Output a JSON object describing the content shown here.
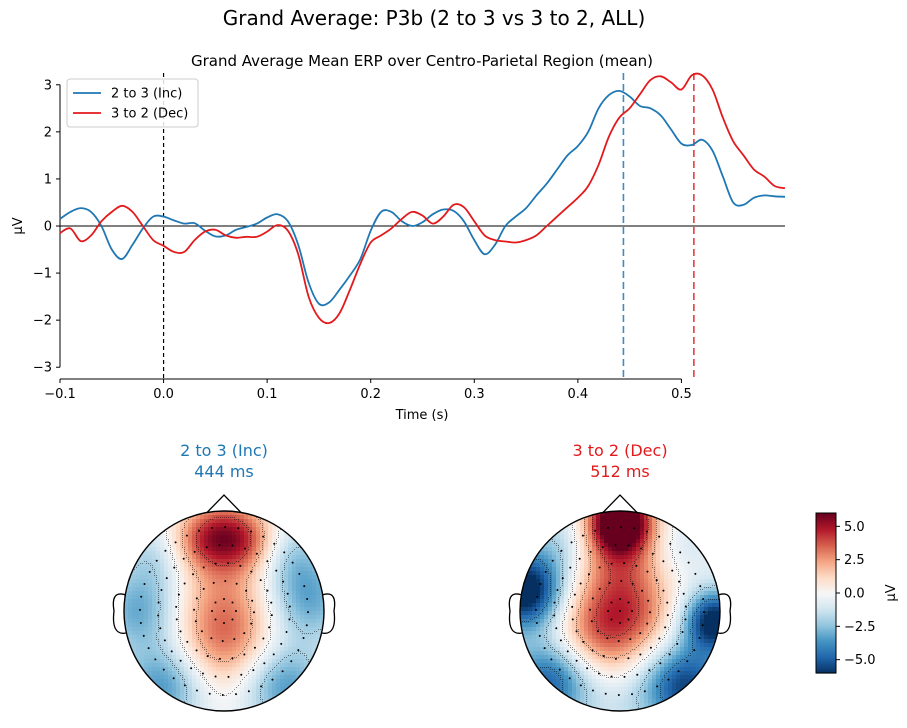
{
  "suptitle": "Grand Average: P3b (2 to 3 vs 3 to 2, ALL)",
  "chart_data": [
    {
      "type": "line",
      "title": "Grand Average Mean ERP over Centro-Parietal Region (mean)",
      "xlabel": "Time (s)",
      "ylabel": "µV",
      "xlim": [
        -0.1,
        0.6
      ],
      "ylim": [
        -3.25,
        3.25
      ],
      "xticks": [
        -0.1,
        0.0,
        0.1,
        0.2,
        0.3,
        0.4,
        0.5
      ],
      "xtick_labels": [
        "−0.1",
        "0.0",
        "0.1",
        "0.2",
        "0.3",
        "0.4",
        "0.5"
      ],
      "yticks": [
        -3,
        -2,
        -1,
        0,
        1,
        2,
        3
      ],
      "ytick_labels": [
        "−3",
        "−2",
        "−1",
        "0",
        "1",
        "2",
        "3"
      ],
      "grid": false,
      "legend_position": "upper-left",
      "zero_line": true,
      "stimulus_onset_marker": 0.0,
      "series": [
        {
          "name": "2 to 3 (Inc)",
          "color": "#1f77b4",
          "peak_marker": 0.444,
          "points": [
            [
              -0.1,
              0.15
            ],
            [
              -0.09,
              0.3
            ],
            [
              -0.08,
              0.38
            ],
            [
              -0.07,
              0.3
            ],
            [
              -0.06,
              0.0
            ],
            [
              -0.05,
              -0.5
            ],
            [
              -0.04,
              -0.7
            ],
            [
              -0.03,
              -0.4
            ],
            [
              -0.02,
              -0.05
            ],
            [
              -0.01,
              0.2
            ],
            [
              0.0,
              0.2
            ],
            [
              0.01,
              0.12
            ],
            [
              0.02,
              0.05
            ],
            [
              0.03,
              0.06
            ],
            [
              0.04,
              -0.1
            ],
            [
              0.05,
              -0.22
            ],
            [
              0.06,
              -0.2
            ],
            [
              0.07,
              -0.08
            ],
            [
              0.08,
              -0.02
            ],
            [
              0.09,
              0.05
            ],
            [
              0.1,
              0.18
            ],
            [
              0.11,
              0.25
            ],
            [
              0.12,
              0.1
            ],
            [
              0.13,
              -0.4
            ],
            [
              0.14,
              -1.2
            ],
            [
              0.15,
              -1.65
            ],
            [
              0.16,
              -1.62
            ],
            [
              0.17,
              -1.35
            ],
            [
              0.18,
              -1.05
            ],
            [
              0.19,
              -0.7
            ],
            [
              0.2,
              -0.1
            ],
            [
              0.21,
              0.3
            ],
            [
              0.22,
              0.3
            ],
            [
              0.23,
              0.1
            ],
            [
              0.24,
              0.0
            ],
            [
              0.25,
              0.08
            ],
            [
              0.26,
              0.25
            ],
            [
              0.27,
              0.35
            ],
            [
              0.28,
              0.32
            ],
            [
              0.29,
              0.1
            ],
            [
              0.3,
              -0.3
            ],
            [
              0.31,
              -0.6
            ],
            [
              0.32,
              -0.4
            ],
            [
              0.33,
              0.0
            ],
            [
              0.34,
              0.2
            ],
            [
              0.35,
              0.38
            ],
            [
              0.36,
              0.65
            ],
            [
              0.37,
              0.9
            ],
            [
              0.38,
              1.2
            ],
            [
              0.39,
              1.5
            ],
            [
              0.4,
              1.7
            ],
            [
              0.41,
              2.0
            ],
            [
              0.42,
              2.5
            ],
            [
              0.43,
              2.78
            ],
            [
              0.44,
              2.87
            ],
            [
              0.45,
              2.75
            ],
            [
              0.46,
              2.55
            ],
            [
              0.47,
              2.5
            ],
            [
              0.48,
              2.35
            ],
            [
              0.49,
              2.05
            ],
            [
              0.5,
              1.75
            ],
            [
              0.51,
              1.72
            ],
            [
              0.52,
              1.83
            ],
            [
              0.53,
              1.6
            ],
            [
              0.54,
              1.05
            ],
            [
              0.55,
              0.5
            ],
            [
              0.56,
              0.45
            ],
            [
              0.57,
              0.6
            ],
            [
              0.58,
              0.65
            ],
            [
              0.59,
              0.63
            ],
            [
              0.6,
              0.62
            ]
          ]
        },
        {
          "name": "3 to 2 (Dec)",
          "color": "#e31a1c",
          "peak_marker": 0.512,
          "points": [
            [
              -0.1,
              -0.15
            ],
            [
              -0.09,
              -0.05
            ],
            [
              -0.08,
              -0.32
            ],
            [
              -0.07,
              -0.2
            ],
            [
              -0.06,
              0.1
            ],
            [
              -0.05,
              0.3
            ],
            [
              -0.04,
              0.43
            ],
            [
              -0.03,
              0.3
            ],
            [
              -0.02,
              0.0
            ],
            [
              -0.01,
              -0.3
            ],
            [
              0.0,
              -0.42
            ],
            [
              0.01,
              -0.55
            ],
            [
              0.02,
              -0.55
            ],
            [
              0.03,
              -0.3
            ],
            [
              0.04,
              -0.12
            ],
            [
              0.05,
              -0.08
            ],
            [
              0.06,
              -0.2
            ],
            [
              0.07,
              -0.25
            ],
            [
              0.08,
              -0.23
            ],
            [
              0.09,
              -0.23
            ],
            [
              0.1,
              -0.12
            ],
            [
              0.11,
              0.02
            ],
            [
              0.12,
              -0.1
            ],
            [
              0.13,
              -0.6
            ],
            [
              0.14,
              -1.5
            ],
            [
              0.15,
              -1.95
            ],
            [
              0.16,
              -2.06
            ],
            [
              0.17,
              -1.85
            ],
            [
              0.18,
              -1.35
            ],
            [
              0.19,
              -0.8
            ],
            [
              0.2,
              -0.35
            ],
            [
              0.21,
              -0.2
            ],
            [
              0.22,
              -0.05
            ],
            [
              0.23,
              0.15
            ],
            [
              0.24,
              0.3
            ],
            [
              0.25,
              0.22
            ],
            [
              0.26,
              0.05
            ],
            [
              0.27,
              0.2
            ],
            [
              0.28,
              0.45
            ],
            [
              0.29,
              0.4
            ],
            [
              0.3,
              0.1
            ],
            [
              0.31,
              -0.2
            ],
            [
              0.32,
              -0.3
            ],
            [
              0.33,
              -0.33
            ],
            [
              0.34,
              -0.35
            ],
            [
              0.35,
              -0.3
            ],
            [
              0.36,
              -0.2
            ],
            [
              0.37,
              0.0
            ],
            [
              0.38,
              0.2
            ],
            [
              0.39,
              0.4
            ],
            [
              0.4,
              0.6
            ],
            [
              0.41,
              0.85
            ],
            [
              0.42,
              1.3
            ],
            [
              0.43,
              1.9
            ],
            [
              0.44,
              2.3
            ],
            [
              0.45,
              2.5
            ],
            [
              0.46,
              2.8
            ],
            [
              0.47,
              3.1
            ],
            [
              0.48,
              3.18
            ],
            [
              0.49,
              3.05
            ],
            [
              0.5,
              2.9
            ],
            [
              0.51,
              3.2
            ],
            [
              0.52,
              3.2
            ],
            [
              0.53,
              2.9
            ],
            [
              0.54,
              2.3
            ],
            [
              0.55,
              1.8
            ],
            [
              0.56,
              1.5
            ],
            [
              0.57,
              1.2
            ],
            [
              0.58,
              1.05
            ],
            [
              0.59,
              0.85
            ],
            [
              0.6,
              0.8
            ]
          ]
        }
      ]
    },
    {
      "type": "heatmap",
      "subtype": "topomap",
      "condition": "2 to 3 (Inc)",
      "title_line1": "2 to 3 (Inc)",
      "title_line2": "444 ms",
      "title_color": "#1f77b4",
      "time_ms": 444,
      "sources": [
        {
          "loc": [
            0.0,
            -0.3
          ],
          "v": 3.0,
          "s": 0.35
        },
        {
          "loc": [
            0.0,
            0.75
          ],
          "v": 4.5,
          "s": 0.25
        },
        {
          "loc": [
            -0.3,
            0.7
          ],
          "v": 1.5,
          "s": 0.2
        },
        {
          "loc": [
            0.3,
            0.7
          ],
          "v": 1.5,
          "s": 0.2
        },
        {
          "loc": [
            0.0,
            0.2
          ],
          "v": 1.5,
          "s": 0.35
        },
        {
          "loc": [
            -0.85,
            0.0
          ],
          "v": -3.0,
          "s": 0.3
        },
        {
          "loc": [
            0.85,
            0.1
          ],
          "v": -3.0,
          "s": 0.3
        },
        {
          "loc": [
            -0.6,
            -0.75
          ],
          "v": -3.5,
          "s": 0.3
        },
        {
          "loc": [
            0.6,
            -0.75
          ],
          "v": -3.5,
          "s": 0.3
        },
        {
          "loc": [
            -0.7,
            0.55
          ],
          "v": -1.5,
          "s": 0.25
        },
        {
          "loc": [
            0.7,
            0.55
          ],
          "v": -1.8,
          "s": 0.25
        }
      ]
    },
    {
      "type": "heatmap",
      "subtype": "topomap",
      "condition": "3 to 2 (Dec)",
      "title_line1": "3 to 2 (Dec)",
      "title_line2": "512 ms",
      "title_color": "#e31a1c",
      "time_ms": 512,
      "sources": [
        {
          "loc": [
            0.0,
            0.9
          ],
          "v": 8.0,
          "s": 0.22
        },
        {
          "loc": [
            0.0,
            0.5
          ],
          "v": 2.5,
          "s": 0.3
        },
        {
          "loc": [
            -0.2,
            -0.2
          ],
          "v": 3.5,
          "s": 0.35
        },
        {
          "loc": [
            0.15,
            0.0
          ],
          "v": 2.0,
          "s": 0.3
        },
        {
          "loc": [
            -0.95,
            0.2
          ],
          "v": -7.0,
          "s": 0.28
        },
        {
          "loc": [
            0.95,
            -0.1
          ],
          "v": -6.5,
          "s": 0.22
        },
        {
          "loc": [
            -0.7,
            -0.7
          ],
          "v": -5.0,
          "s": 0.3
        },
        {
          "loc": [
            0.65,
            -0.75
          ],
          "v": -5.5,
          "s": 0.3
        },
        {
          "loc": [
            0.0,
            -0.95
          ],
          "v": -1.0,
          "s": 0.3
        },
        {
          "loc": [
            -0.6,
            0.7
          ],
          "v": -1.5,
          "s": 0.25
        },
        {
          "loc": [
            0.65,
            0.65
          ],
          "v": -1.0,
          "s": 0.25
        }
      ]
    },
    {
      "type": "heatmap",
      "subtype": "colorbar",
      "label": "µV",
      "range": [
        -6.0,
        6.0
      ],
      "ticks": [
        5.0,
        2.5,
        0.0,
        -2.5,
        -5.0
      ],
      "tick_labels": [
        "5.0",
        "2.5",
        "0.0",
        "−2.5",
        "−5.0"
      ],
      "colormap": "RdBu_r"
    }
  ]
}
